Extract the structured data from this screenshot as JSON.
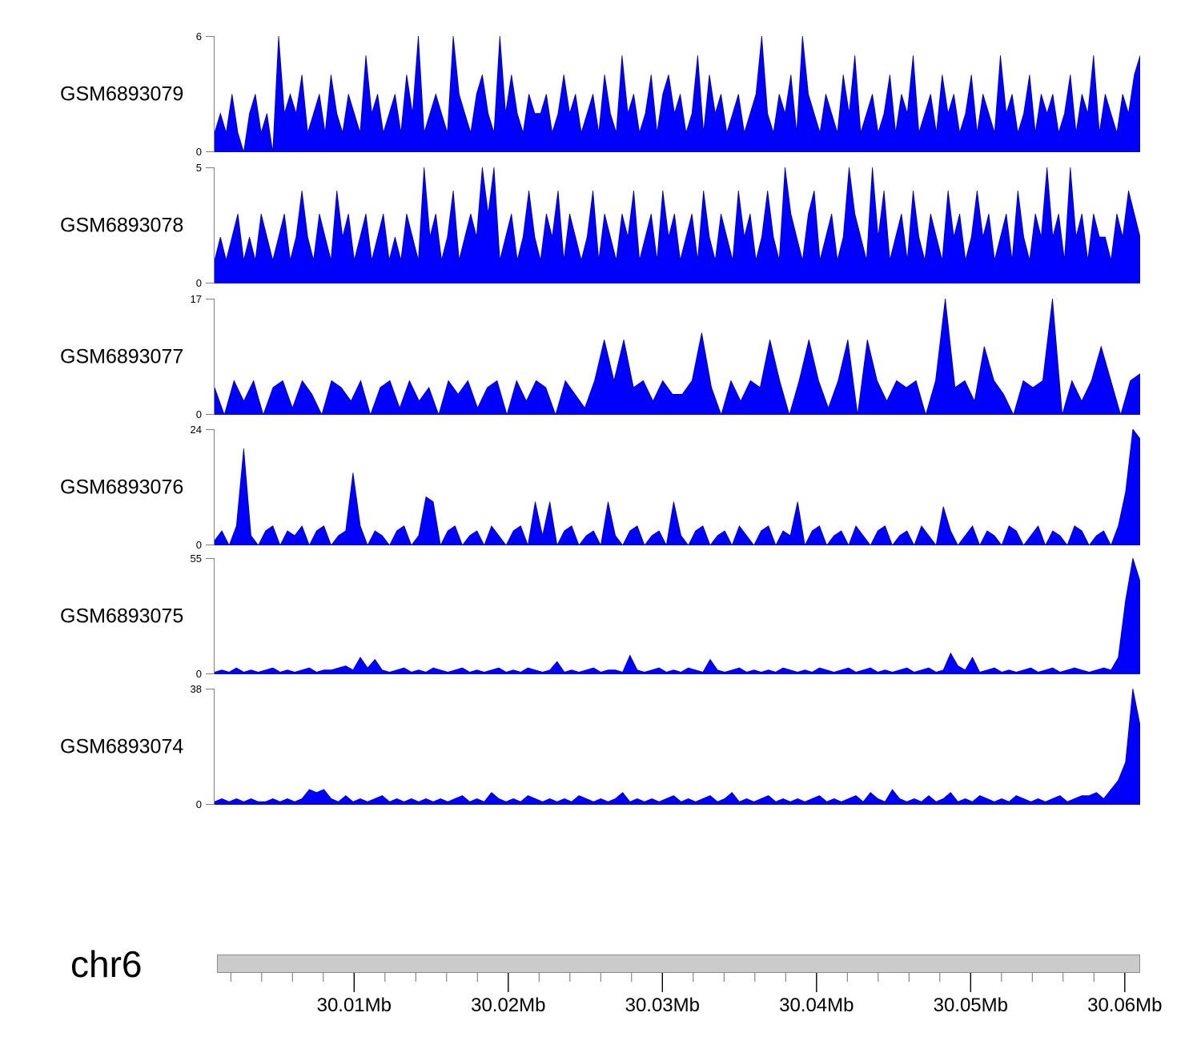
{
  "chart_data": {
    "type": "area",
    "description": "Genome coverage tracks (filled blue area plots) for six GEO samples over a region of chromosome 6",
    "x_axis": {
      "chromosome": "chr6",
      "unit": "Mb",
      "start": 30.0011,
      "end": 30.061,
      "minor_tick_start": 30.002,
      "minor_tick_end": 30.06,
      "minor_tick_step": 0.002,
      "major_ticks": [
        {
          "value": 30.01,
          "label": "30.01Mb"
        },
        {
          "value": 30.02,
          "label": "30.02Mb"
        },
        {
          "value": 30.03,
          "label": "30.03Mb"
        },
        {
          "value": 30.04,
          "label": "30.04Mb"
        },
        {
          "value": 30.05,
          "label": "30.05Mb"
        },
        {
          "value": 30.06,
          "label": "30.06Mb"
        }
      ]
    },
    "colors": {
      "track_fill": "#0000ff",
      "track_stroke": "#000090",
      "axis_bracket": "#7f7f7f",
      "chromosome_bar_fill": "#cbcbcb",
      "chromosome_bar_border": "#8a8a8a",
      "minor_tick": "#6e6e6e",
      "major_tick": "#000000",
      "text": "#000000"
    },
    "tracks": [
      {
        "label": "GSM6893079",
        "ymin": 0,
        "ymax": 6,
        "values": [
          1,
          2,
          1,
          3,
          1,
          0,
          2,
          3,
          1,
          2,
          0,
          6,
          2,
          3,
          2,
          4,
          1,
          2,
          3,
          1,
          4,
          2,
          1,
          3,
          2,
          1,
          5,
          2,
          3,
          1,
          2,
          3,
          1,
          4,
          2,
          6,
          1,
          2,
          3,
          2,
          1,
          6,
          3,
          2,
          1,
          3,
          4,
          2,
          1,
          6,
          2,
          4,
          2,
          1,
          3,
          2,
          2,
          3,
          1,
          2,
          4,
          2,
          3,
          1,
          2,
          3,
          1,
          4,
          2,
          1,
          5,
          2,
          3,
          1,
          2,
          4,
          1,
          3,
          4,
          2,
          3,
          1,
          2,
          5,
          1,
          4,
          2,
          3,
          1,
          2,
          3,
          1,
          2,
          3,
          6,
          2,
          1,
          3,
          2,
          4,
          1,
          6,
          3,
          2,
          1,
          3,
          2,
          1,
          4,
          2,
          5,
          1,
          2,
          3,
          1,
          2,
          4,
          1,
          3,
          2,
          5,
          1,
          2,
          3,
          1,
          4,
          2,
          3,
          1,
          2,
          4,
          1,
          3,
          2,
          1,
          5,
          2,
          3,
          1,
          2,
          4,
          1,
          3,
          2,
          3,
          1,
          2,
          4,
          1,
          3,
          2,
          5,
          1,
          3,
          2,
          1,
          3,
          2,
          4,
          5
        ]
      },
      {
        "label": "GSM6893078",
        "ymin": 0,
        "ymax": 5,
        "values": [
          1,
          2,
          1,
          2,
          3,
          1,
          2,
          1,
          3,
          2,
          1,
          2,
          3,
          1,
          2,
          4,
          2,
          1,
          3,
          2,
          1,
          4,
          2,
          3,
          1,
          2,
          3,
          1,
          2,
          3,
          1,
          2,
          1,
          3,
          2,
          1,
          5,
          2,
          3,
          1,
          2,
          4,
          1,
          2,
          3,
          2,
          5,
          3,
          5,
          1,
          2,
          3,
          1,
          2,
          4,
          2,
          1,
          3,
          2,
          4,
          1,
          3,
          2,
          1,
          2,
          4,
          1,
          3,
          2,
          1,
          3,
          2,
          4,
          1,
          2,
          3,
          1,
          4,
          2,
          3,
          1,
          2,
          3,
          1,
          4,
          2,
          1,
          3,
          2,
          1,
          4,
          2,
          3,
          1,
          2,
          4,
          2,
          1,
          5,
          3,
          2,
          1,
          3,
          4,
          1,
          2,
          3,
          1,
          2,
          5,
          3,
          2,
          1,
          5,
          2,
          4,
          1,
          2,
          3,
          1,
          4,
          2,
          1,
          3,
          2,
          1,
          4,
          2,
          3,
          1,
          2,
          4,
          2,
          3,
          1,
          2,
          3,
          1,
          4,
          2,
          1,
          3,
          2,
          5,
          2,
          3,
          1,
          5,
          2,
          3,
          1,
          3,
          2,
          2,
          1,
          3,
          2,
          4,
          3,
          2
        ]
      },
      {
        "label": "GSM6893077",
        "ymin": 0,
        "ymax": 17,
        "values": [
          4,
          0,
          5,
          2,
          5,
          0,
          4,
          5,
          1,
          5,
          3,
          0,
          5,
          4,
          2,
          5,
          0,
          4,
          5,
          1,
          5,
          2,
          4,
          0,
          5,
          3,
          5,
          1,
          4,
          5,
          0,
          5,
          2,
          5,
          4,
          0,
          5,
          3,
          1,
          5,
          11,
          5,
          11,
          4,
          5,
          2,
          5,
          3,
          3,
          5,
          12,
          4,
          0,
          5,
          2,
          5,
          4,
          11,
          5,
          0,
          5,
          11,
          5,
          1,
          5,
          11,
          0,
          11,
          5,
          2,
          5,
          4,
          5,
          0,
          5,
          17,
          4,
          5,
          2,
          10,
          5,
          3,
          0,
          5,
          4,
          5,
          17,
          0,
          5,
          2,
          5,
          10,
          5,
          0,
          5,
          6
        ]
      },
      {
        "label": "GSM6893076",
        "ymin": 0,
        "ymax": 24,
        "values": [
          1,
          3,
          0,
          4,
          20,
          2,
          0,
          3,
          4,
          0,
          3,
          2,
          4,
          0,
          3,
          4,
          0,
          2,
          3,
          15,
          4,
          0,
          3,
          2,
          0,
          3,
          4,
          0,
          2,
          10,
          9,
          0,
          3,
          4,
          0,
          2,
          3,
          0,
          4,
          2,
          0,
          3,
          4,
          0,
          9,
          2,
          9,
          0,
          3,
          4,
          0,
          2,
          3,
          0,
          9,
          2,
          0,
          3,
          4,
          0,
          2,
          3,
          0,
          9,
          2,
          0,
          3,
          4,
          0,
          2,
          3,
          0,
          4,
          2,
          0,
          3,
          4,
          0,
          3,
          2,
          9,
          0,
          3,
          4,
          0,
          2,
          3,
          0,
          4,
          2,
          0,
          3,
          4,
          0,
          2,
          3,
          0,
          4,
          2,
          0,
          8,
          3,
          0,
          2,
          4,
          0,
          3,
          2,
          0,
          4,
          3,
          0,
          2,
          4,
          0,
          3,
          2,
          0,
          4,
          3,
          0,
          2,
          3,
          0,
          4,
          11,
          24,
          22
        ]
      },
      {
        "label": "GSM6893075",
        "ymin": 0,
        "ymax": 55,
        "values": [
          1,
          2,
          1,
          3,
          1,
          2,
          1,
          2,
          3,
          1,
          2,
          1,
          2,
          3,
          1,
          2,
          2,
          3,
          4,
          2,
          8,
          3,
          7,
          2,
          1,
          2,
          3,
          1,
          2,
          1,
          3,
          2,
          1,
          2,
          3,
          1,
          2,
          1,
          2,
          3,
          1,
          2,
          1,
          3,
          2,
          1,
          2,
          6,
          1,
          2,
          1,
          2,
          3,
          1,
          2,
          2,
          1,
          9,
          2,
          1,
          2,
          3,
          1,
          2,
          1,
          3,
          2,
          1,
          7,
          2,
          1,
          2,
          3,
          1,
          2,
          1,
          2,
          1,
          3,
          2,
          1,
          2,
          1,
          3,
          2,
          1,
          2,
          3,
          1,
          2,
          3,
          1,
          2,
          1,
          2,
          3,
          1,
          2,
          3,
          1,
          2,
          10,
          4,
          2,
          8,
          1,
          2,
          3,
          1,
          2,
          1,
          2,
          3,
          1,
          2,
          3,
          1,
          2,
          3,
          2,
          1,
          2,
          3,
          2,
          8,
          35,
          55,
          44
        ]
      },
      {
        "label": "GSM6893074",
        "ymin": 0,
        "ymax": 38,
        "values": [
          1,
          2,
          1,
          2,
          1,
          2,
          1,
          1,
          2,
          1,
          2,
          1,
          2,
          5,
          4,
          5,
          2,
          1,
          3,
          1,
          2,
          1,
          2,
          3,
          1,
          2,
          1,
          2,
          1,
          2,
          1,
          2,
          1,
          2,
          3,
          1,
          2,
          1,
          4,
          2,
          1,
          2,
          1,
          3,
          2,
          1,
          2,
          1,
          2,
          1,
          3,
          2,
          1,
          2,
          1,
          2,
          4,
          1,
          2,
          1,
          2,
          1,
          2,
          3,
          1,
          2,
          1,
          2,
          3,
          1,
          2,
          4,
          1,
          2,
          1,
          2,
          3,
          1,
          2,
          1,
          2,
          1,
          2,
          3,
          1,
          2,
          1,
          2,
          3,
          1,
          4,
          2,
          1,
          5,
          2,
          1,
          2,
          1,
          3,
          1,
          2,
          4,
          1,
          2,
          1,
          3,
          2,
          1,
          2,
          1,
          3,
          2,
          1,
          2,
          1,
          2,
          3,
          1,
          2,
          3,
          3,
          4,
          2,
          5,
          8,
          14,
          38,
          26
        ]
      }
    ]
  }
}
